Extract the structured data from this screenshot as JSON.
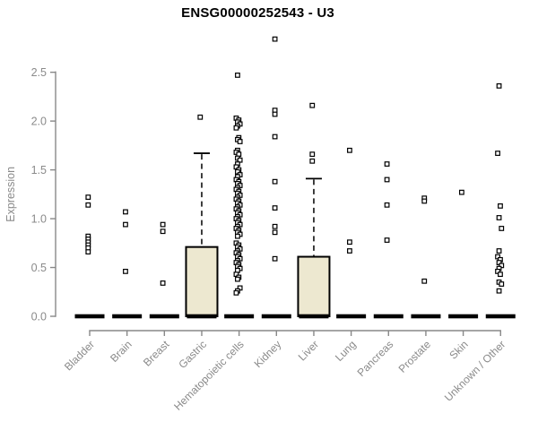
{
  "title": "ENSG00000252543 - U3",
  "colors": {
    "box_fill": "#EDE8D0",
    "box_border": "#000000",
    "point": "#000000",
    "point_fill": "#ffffff",
    "axis": "#888888",
    "axis_label": "#8a8a8a",
    "title": "#000000",
    "background": "#ffffff"
  },
  "chart_data": {
    "type": "boxplot",
    "title": "ENSG00000252543 - U3",
    "xlabel": "",
    "ylabel": "Expression",
    "ylim": [
      0,
      2.5
    ],
    "yticks": [
      0.0,
      0.5,
      1.0,
      1.5,
      2.0,
      2.5
    ],
    "grid": "off",
    "categories": [
      "Bladder",
      "Brain",
      "Breast",
      "Gastric",
      "Hematopoietic cells",
      "Kidney",
      "Liver",
      "Lung",
      "Pancreas",
      "Prostate",
      "Skin",
      "Unknown / Other"
    ],
    "boxes": [
      {
        "category": "Bladder",
        "median": 0,
        "q1": 0,
        "q3": 0,
        "whisker_low": 0,
        "whisker_high": 0,
        "outliers": [
          1.22,
          1.14,
          0.82,
          0.79,
          0.76,
          0.73,
          0.7,
          0.66
        ]
      },
      {
        "category": "Brain",
        "median": 0,
        "q1": 0,
        "q3": 0,
        "whisker_low": 0,
        "whisker_high": 0,
        "outliers": [
          1.07,
          0.94,
          0.46
        ]
      },
      {
        "category": "Breast",
        "median": 0,
        "q1": 0,
        "q3": 0,
        "whisker_low": 0,
        "whisker_high": 0,
        "outliers": [
          0.94,
          0.87,
          0.34
        ]
      },
      {
        "category": "Gastric",
        "median": 0,
        "q1": 0,
        "q3": 0.71,
        "whisker_low": 0,
        "whisker_high": 1.67,
        "outliers": [
          2.04
        ]
      },
      {
        "category": "Hematopoietic cells",
        "median": 0,
        "q1": 0,
        "q3": 0,
        "whisker_low": 0,
        "whisker_high": 0,
        "outliers": [
          2.47,
          2.03,
          2.01,
          1.99,
          1.97,
          1.95,
          1.93,
          1.83,
          1.81,
          1.79,
          1.7,
          1.68,
          1.66,
          1.62,
          1.6,
          1.56,
          1.53,
          1.5,
          1.48,
          1.45,
          1.43,
          1.4,
          1.38,
          1.36,
          1.34,
          1.32,
          1.3,
          1.28,
          1.26,
          1.24,
          1.22,
          1.2,
          1.18,
          1.16,
          1.14,
          1.12,
          1.1,
          1.08,
          1.06,
          1.04,
          1.02,
          1.0,
          0.98,
          0.96,
          0.94,
          0.92,
          0.9,
          0.88,
          0.86,
          0.84,
          0.82,
          0.75,
          0.73,
          0.71,
          0.69,
          0.67,
          0.65,
          0.63,
          0.61,
          0.59,
          0.57,
          0.55,
          0.53,
          0.51,
          0.49,
          0.47,
          0.43,
          0.4,
          0.38,
          0.29,
          0.26,
          0.24
        ]
      },
      {
        "category": "Kidney",
        "median": 0,
        "q1": 0,
        "q3": 0,
        "whisker_low": 0,
        "whisker_high": 0,
        "outliers": [
          2.84,
          2.11,
          2.07,
          1.84,
          1.38,
          1.11,
          0.92,
          0.86,
          0.59
        ]
      },
      {
        "category": "Liver",
        "median": 0,
        "q1": 0,
        "q3": 0.61,
        "whisker_low": 0,
        "whisker_high": 1.41,
        "outliers": [
          2.16,
          1.66,
          1.59
        ]
      },
      {
        "category": "Lung",
        "median": 0,
        "q1": 0,
        "q3": 0,
        "whisker_low": 0,
        "whisker_high": 0,
        "outliers": [
          1.7,
          0.76,
          0.67
        ]
      },
      {
        "category": "Pancreas",
        "median": 0,
        "q1": 0,
        "q3": 0,
        "whisker_low": 0,
        "whisker_high": 0,
        "outliers": [
          1.56,
          1.4,
          1.14,
          0.78
        ]
      },
      {
        "category": "Prostate",
        "median": 0,
        "q1": 0,
        "q3": 0,
        "whisker_low": 0,
        "whisker_high": 0,
        "outliers": [
          1.21,
          1.18,
          0.36
        ]
      },
      {
        "category": "Skin",
        "median": 0,
        "q1": 0,
        "q3": 0,
        "whisker_low": 0,
        "whisker_high": 0,
        "outliers": [
          1.27
        ]
      },
      {
        "category": "Unknown / Other",
        "median": 0,
        "q1": 0,
        "q3": 0,
        "whisker_low": 0,
        "whisker_high": 0,
        "outliers": [
          2.36,
          1.67,
          1.13,
          1.01,
          0.9,
          0.67,
          0.61,
          0.58,
          0.55,
          0.52,
          0.49,
          0.46,
          0.43,
          0.35,
          0.33,
          0.26
        ]
      }
    ]
  }
}
